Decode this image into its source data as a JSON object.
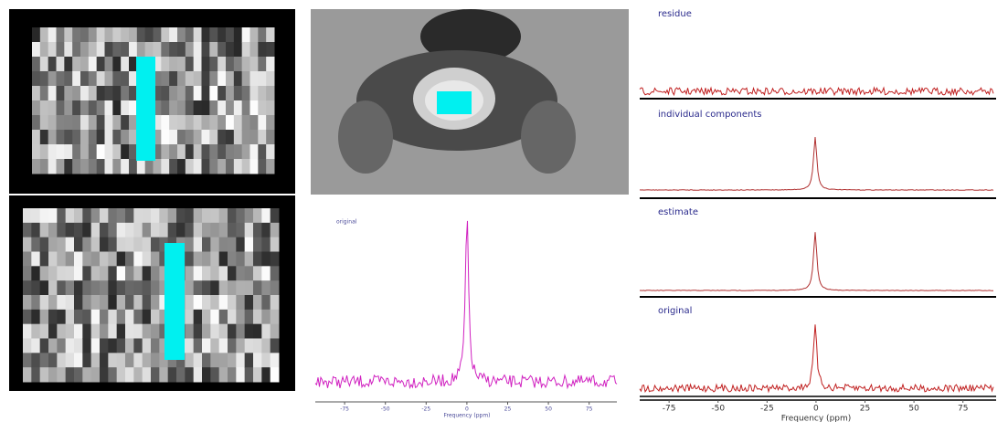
{
  "middle_spectrum": {
    "label": "original",
    "xlabel": "Frequency (ppm)",
    "xlim": [
      -93,
      92
    ],
    "xticks": [
      -75,
      -50,
      -25,
      0,
      25,
      50,
      75
    ]
  },
  "right_spectra": {
    "panels": [
      {
        "label": "residue"
      },
      {
        "label": "individual components"
      },
      {
        "label": "estimate"
      },
      {
        "label": "original"
      }
    ],
    "xlabel": "Frequency (ppm)",
    "xlim": [
      -90,
      91
    ],
    "xticks": [
      -75,
      -50,
      -25,
      0,
      25,
      50,
      75
    ]
  }
}
